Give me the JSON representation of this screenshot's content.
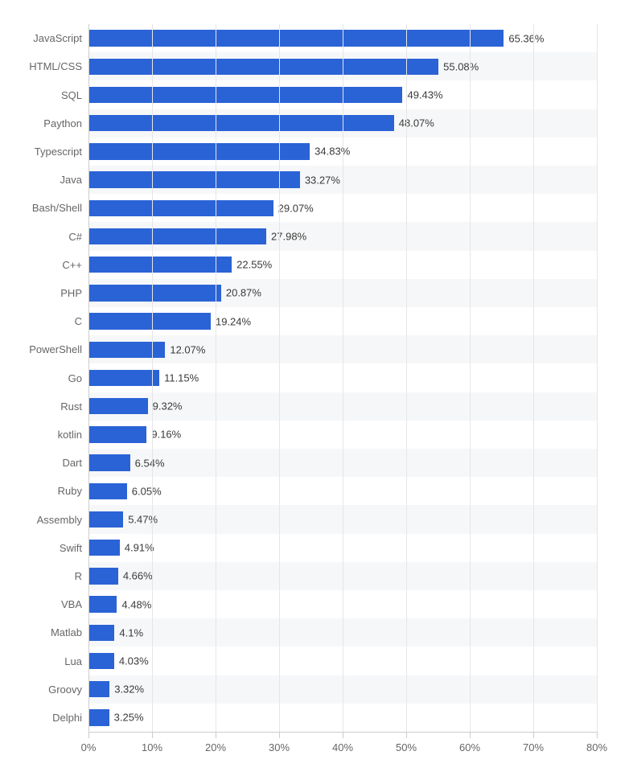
{
  "chart": {
    "type": "bar-horizontal",
    "bar_color": "#2a63d6",
    "background_color": "#ffffff",
    "alt_row_color": "#f6f7f8",
    "grid_color": "#e6e6e6",
    "axis_color": "#cccccc",
    "label_color": "#666666",
    "value_label_color": "#3a3a3a",
    "label_fontsize": 13,
    "xlim": [
      0,
      80
    ],
    "xtick_step": 10,
    "xticks": [
      0,
      10,
      20,
      30,
      40,
      50,
      60,
      70,
      80
    ],
    "xtick_labels": [
      "0%",
      "10%",
      "20%",
      "30%",
      "40%",
      "50%",
      "60%",
      "70%",
      "80%"
    ],
    "bar_height_ratio": 0.58,
    "data": [
      {
        "label": "JavaScript",
        "value": 65.36,
        "display": "65.36%"
      },
      {
        "label": "HTML/CSS",
        "value": 55.08,
        "display": "55.08%"
      },
      {
        "label": "SQL",
        "value": 49.43,
        "display": "49.43%"
      },
      {
        "label": "Paython",
        "value": 48.07,
        "display": "48.07%"
      },
      {
        "label": "Typescript",
        "value": 34.83,
        "display": "34.83%"
      },
      {
        "label": "Java",
        "value": 33.27,
        "display": "33.27%"
      },
      {
        "label": "Bash/Shell",
        "value": 29.07,
        "display": "29.07%"
      },
      {
        "label": "C#",
        "value": 27.98,
        "display": "27.98%"
      },
      {
        "label": "C++",
        "value": 22.55,
        "display": "22.55%"
      },
      {
        "label": "PHP",
        "value": 20.87,
        "display": "20.87%"
      },
      {
        "label": "C",
        "value": 19.24,
        "display": "19.24%"
      },
      {
        "label": "PowerShell",
        "value": 12.07,
        "display": "12.07%"
      },
      {
        "label": "Go",
        "value": 11.15,
        "display": "11.15%"
      },
      {
        "label": "Rust",
        "value": 9.32,
        "display": "9.32%"
      },
      {
        "label": "kotlin",
        "value": 9.16,
        "display": "9.16%"
      },
      {
        "label": "Dart",
        "value": 6.54,
        "display": "6.54%"
      },
      {
        "label": "Ruby",
        "value": 6.05,
        "display": "6.05%"
      },
      {
        "label": "Assembly",
        "value": 5.47,
        "display": "5.47%"
      },
      {
        "label": "Swift",
        "value": 4.91,
        "display": "4.91%"
      },
      {
        "label": "R",
        "value": 4.66,
        "display": "4.66%"
      },
      {
        "label": "VBA",
        "value": 4.48,
        "display": "4.48%"
      },
      {
        "label": "Matlab",
        "value": 4.1,
        "display": "4.1%"
      },
      {
        "label": "Lua",
        "value": 4.03,
        "display": "4.03%"
      },
      {
        "label": "Groovy",
        "value": 3.32,
        "display": "3.32%"
      },
      {
        "label": "Delphi",
        "value": 3.25,
        "display": "3.25%"
      }
    ]
  }
}
